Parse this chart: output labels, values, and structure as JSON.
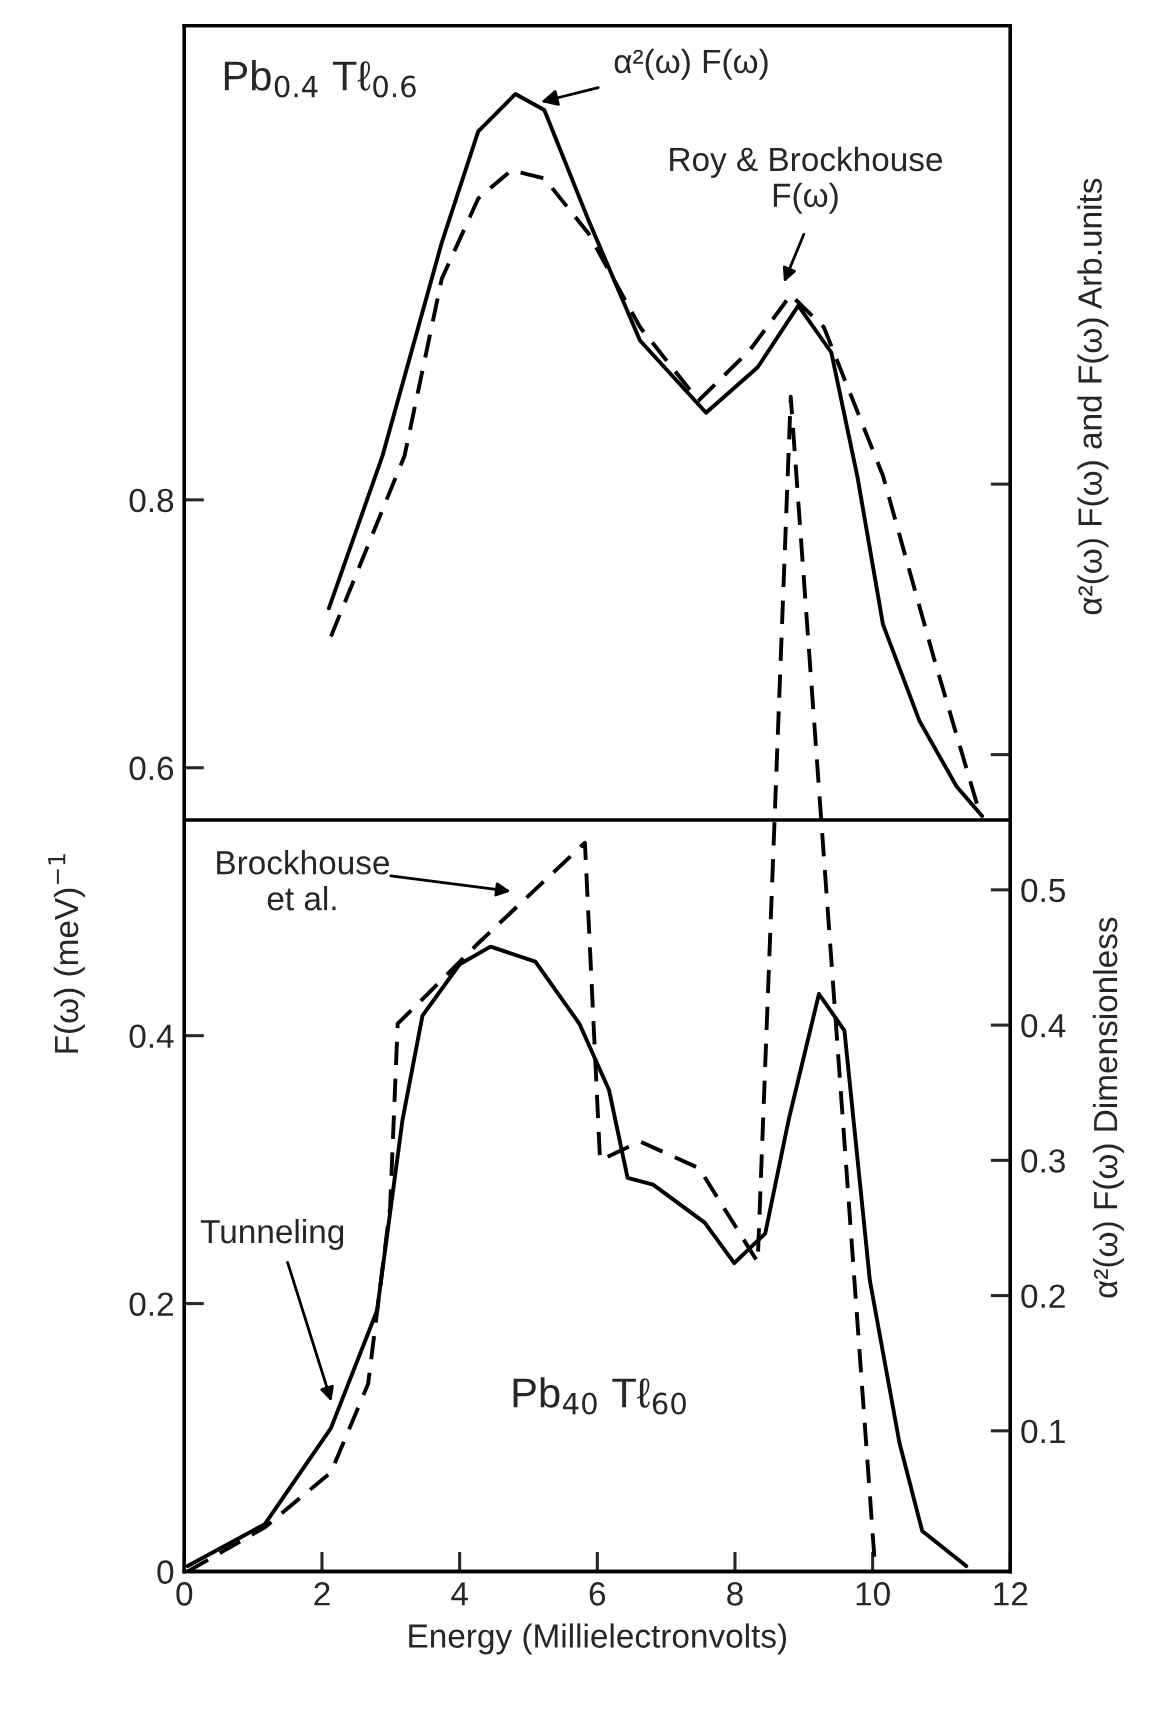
{
  "chart_data": {
    "type": "line",
    "xlabel": "Energy (Millielectronvolts)",
    "ylabel": "F(ω) (meV)$^{−1}$",
    "y2label": "α²(ω) F(ω) Dimensionless",
    "xlim": [
      0,
      12
    ],
    "xticks": [
      0,
      2,
      4,
      6,
      8,
      10,
      12
    ],
    "ylim": [
      0,
      1.154
    ],
    "yticks": [
      0,
      0.2,
      0.4,
      0.6,
      0.8
    ],
    "y2lim": [
      -0.004,
      1.139
    ],
    "y2ticks": [
      0.1,
      0.2,
      0.3,
      0.4,
      0.5,
      {
        "value": 0.6,
        "label": null
      },
      {
        "value": 0.8,
        "label": null
      }
    ],
    "grid": false,
    "legend": false,
    "series": [
      {
        "color": "#000000",
        "line_style": "solid",
        "x": [
          2.1,
          2.88,
          3.74,
          4.27,
          4.81,
          5.23,
          5.87,
          6.62,
          7.58,
          8.33,
          8.92,
          9.4,
          9.78,
          10.15,
          10.68,
          11.22,
          11.59
        ],
        "values": [
          0.719,
          0.833,
          0.992,
          1.075,
          1.103,
          1.091,
          1.009,
          0.919,
          0.865,
          0.899,
          0.945,
          0.91,
          0.817,
          0.707,
          0.635,
          0.586,
          0.564
        ]
      },
      {
        "color": "#000000",
        "line_style": "dashed",
        "x": [
          2.13,
          3.2,
          3.74,
          4.27,
          4.75,
          5.23,
          5.87,
          6.62,
          7.47,
          8.22,
          8.81,
          9.29,
          10.15,
          10.9,
          11.55
        ],
        "values": [
          0.698,
          0.833,
          0.965,
          1.025,
          1.046,
          1.04,
          0.999,
          0.929,
          0.874,
          0.912,
          0.953,
          0.929,
          0.818,
          0.68,
          0.567
        ]
      },
      {
        "color": "#000000",
        "line_style": "dashed",
        "x": [
          0.05,
          1.17,
          2.13,
          2.67,
          2.99,
          3.1,
          3.32,
          4.27,
          5.82,
          6.04,
          6.62,
          7.48,
          8.33,
          8.81,
          10.04
        ],
        "values": [
          0,
          0.033,
          0.074,
          0.14,
          0.272,
          0.409,
          0.42,
          0.469,
          0.544,
          0.307,
          0.321,
          0.301,
          0.231,
          0.877,
          0
        ]
      },
      {
        "color": "#000000",
        "line_style": "solid",
        "axis": "y2",
        "x": [
          0.05,
          1.17,
          2.13,
          2.8,
          3.17,
          3.46,
          4.0,
          4.45,
          5.1,
          5.74,
          6.17,
          6.44,
          6.81,
          7.56,
          7.99,
          8.44,
          8.78,
          9.22,
          9.59,
          9.96,
          10.39,
          10.72,
          11.36
        ],
        "values": [
          0,
          0.031,
          0.102,
          0.189,
          0.33,
          0.407,
          0.445,
          0.458,
          0.447,
          0.401,
          0.352,
          0.287,
          0.282,
          0.254,
          0.224,
          0.246,
          0.33,
          0.423,
          0.396,
          0.211,
          0.091,
          0.026,
          0
        ]
      }
    ],
    "ref_lines": [
      {
        "axis": "y",
        "value": 0.561
      }
    ],
    "annotations": [
      "Pb$_{0.4}$ Tℓ$_{0.6}$",
      {
        "text": "α²(ω) F(ω)",
        "x": 5.18,
        "y": 1.097
      },
      "Roy & Brockhouse\nF(ω)",
      "Brockhouse\net al.",
      "Tunneling",
      "Pb$_{40}$ Tℓ$_{60}$",
      "α²(ω) F(ω) and F(ω) Arb.units"
    ]
  }
}
